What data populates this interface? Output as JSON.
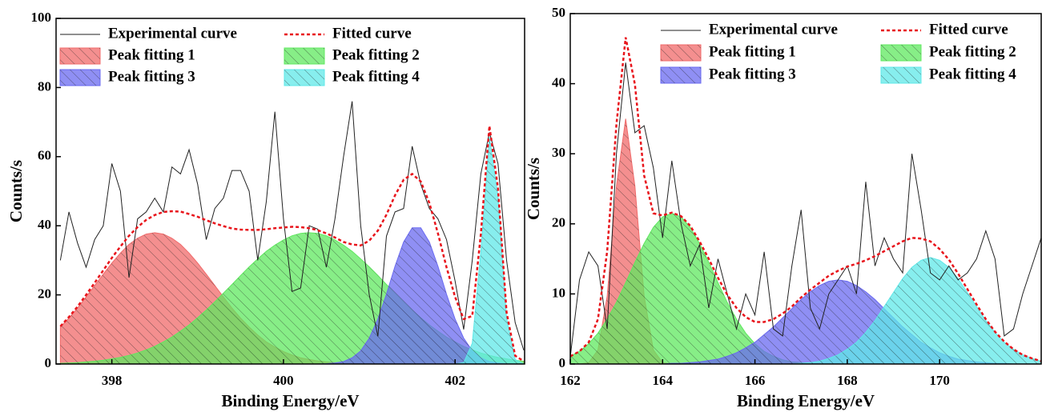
{
  "chart_data": [
    {
      "type": "line",
      "xlabel": "Binding Energy/eV",
      "ylabel": "Counts/s",
      "xlim": [
        397.35,
        402.81
      ],
      "xticks": [
        398,
        400,
        402
      ],
      "ylim": [
        0,
        100
      ],
      "yticks": [
        0,
        20,
        40,
        60,
        80,
        100
      ],
      "x": [
        397.4,
        397.5,
        397.6,
        397.7,
        397.8,
        397.9,
        398.0,
        398.1,
        398.2,
        398.3,
        398.4,
        398.5,
        398.6,
        398.7,
        398.8,
        398.9,
        399.0,
        399.1,
        399.2,
        399.3,
        399.4,
        399.5,
        399.6,
        399.7,
        399.8,
        399.9,
        400.0,
        400.1,
        400.2,
        400.3,
        400.4,
        400.5,
        400.6,
        400.7,
        400.8,
        400.9,
        401.0,
        401.1,
        401.2,
        401.3,
        401.4,
        401.5,
        401.6,
        401.7,
        401.8,
        401.9,
        402.0,
        402.1,
        402.2,
        402.3,
        402.4,
        402.5,
        402.6,
        402.7,
        402.8
      ],
      "series": [
        {
          "name": "Peak fitting 1",
          "style": "hatched-area",
          "color": "#f06a6a",
          "values": [
            10.7,
            13.3,
            16.2,
            19.4,
            22.7,
            26.0,
            29.2,
            32.1,
            34.6,
            36.4,
            37.6,
            38.0,
            37.6,
            36.4,
            34.6,
            32.1,
            29.2,
            26.0,
            22.7,
            19.4,
            16.2,
            13.3,
            10.7,
            8.4,
            6.4,
            4.9,
            3.6,
            2.6,
            1.8,
            1.3,
            0.9,
            0.6,
            0.4,
            0.2,
            0.2,
            0.1,
            0.1,
            0,
            0,
            0,
            0,
            0,
            0,
            0,
            0,
            0,
            0,
            0,
            0,
            0,
            0,
            0,
            0,
            0,
            0
          ]
        },
        {
          "name": "Peak fitting 2",
          "style": "hatched-area",
          "color": "#5fe85f",
          "values": [
            0.2,
            0.3,
            0.4,
            0.6,
            0.8,
            1.1,
            1.5,
            1.9,
            2.5,
            3.2,
            4.1,
            5.1,
            6.4,
            7.8,
            9.5,
            11.3,
            13.4,
            15.6,
            18.0,
            20.5,
            23.0,
            25.6,
            28.1,
            30.4,
            32.6,
            34.4,
            35.9,
            37.1,
            37.8,
            38.0,
            37.8,
            37.1,
            35.9,
            34.4,
            32.6,
            30.4,
            28.1,
            25.6,
            23.0,
            20.5,
            18.0,
            15.6,
            13.4,
            11.3,
            9.5,
            7.8,
            6.4,
            5.1,
            4.1,
            3.2,
            2.5,
            1.9,
            1.5,
            1.1,
            0.8
          ]
        },
        {
          "name": "Peak fitting 3",
          "style": "hatched-area",
          "color": "#6a6af0",
          "values": [
            0,
            0,
            0,
            0,
            0,
            0,
            0,
            0,
            0,
            0,
            0,
            0,
            0,
            0,
            0,
            0,
            0,
            0,
            0,
            0,
            0,
            0,
            0,
            0,
            0,
            0,
            0,
            0,
            0,
            0,
            0,
            0.1,
            0.3,
            0.7,
            1.8,
            3.8,
            7.5,
            13.0,
            20.2,
            28.3,
            35.3,
            39.4,
            39.4,
            35.3,
            28.3,
            20.2,
            13.0,
            7.5,
            3.8,
            1.8,
            0.7,
            0.3,
            0.1,
            0,
            0
          ]
        },
        {
          "name": "Peak fitting 4",
          "style": "hatched-area",
          "color": "#5fe8e8",
          "values": [
            0,
            0,
            0,
            0,
            0,
            0,
            0,
            0,
            0,
            0,
            0,
            0,
            0,
            0,
            0,
            0,
            0,
            0,
            0,
            0,
            0,
            0,
            0,
            0,
            0,
            0,
            0,
            0,
            0,
            0,
            0,
            0,
            0,
            0,
            0,
            0,
            0,
            0,
            0,
            0,
            0,
            0,
            0,
            0,
            0,
            0,
            0,
            0.4,
            6.0,
            32.6,
            65.7,
            48.6,
            13.3,
            1.3,
            0
          ]
        },
        {
          "name": "Experimental curve",
          "style": "line",
          "color": "#222222",
          "values": [
            30,
            44,
            35,
            28,
            36,
            40,
            58,
            50,
            25,
            42,
            44,
            48,
            44,
            57,
            55,
            62,
            52,
            36,
            45,
            48,
            56,
            56,
            50,
            30,
            47,
            73,
            42,
            21,
            22,
            40,
            39,
            28,
            42,
            60,
            76,
            40,
            20,
            8,
            37,
            44,
            45,
            63,
            52,
            45,
            42,
            36,
            24,
            10,
            30,
            55,
            67,
            58,
            30,
            12,
            4
          ]
        },
        {
          "name": "Fitted curve",
          "style": "dashed",
          "color": "#e8141b",
          "values": [
            10.9,
            13.6,
            16.6,
            20.0,
            23.5,
            27.1,
            30.7,
            34.0,
            37.1,
            39.6,
            41.7,
            43.1,
            44.0,
            44.2,
            44.1,
            43.4,
            42.6,
            41.6,
            40.7,
            39.9,
            39.2,
            38.9,
            38.8,
            38.8,
            39.0,
            39.3,
            39.5,
            39.7,
            39.6,
            39.3,
            38.7,
            37.8,
            36.6,
            35.3,
            34.6,
            34.3,
            35.7,
            38.6,
            43.2,
            48.8,
            53.3,
            55.0,
            52.8,
            46.6,
            37.8,
            28.0,
            19.4,
            13.0,
            13.9,
            37.6,
            68.9,
            50.8,
            14.9,
            2.4,
            0.8
          ]
        }
      ],
      "legend_order": [
        4,
        5,
        0,
        1,
        2,
        3
      ]
    },
    {
      "type": "line",
      "xlabel": "Binding Energy/eV",
      "ylabel": "Counts/s",
      "xlim": [
        162,
        172.2
      ],
      "xticks": [
        162,
        164,
        166,
        168,
        170
      ],
      "ylim": [
        0,
        50
      ],
      "yticks": [
        0,
        10,
        20,
        30,
        40,
        50
      ],
      "x": [
        162.0,
        162.2,
        162.4,
        162.6,
        162.8,
        163.0,
        163.2,
        163.4,
        163.6,
        163.8,
        164.0,
        164.2,
        164.4,
        164.6,
        164.8,
        165.0,
        165.2,
        165.4,
        165.6,
        165.8,
        166.0,
        166.2,
        166.4,
        166.6,
        166.8,
        167.0,
        167.2,
        167.4,
        167.6,
        167.8,
        168.0,
        168.2,
        168.4,
        168.6,
        168.8,
        169.0,
        169.2,
        169.4,
        169.6,
        169.8,
        170.0,
        170.2,
        170.4,
        170.6,
        170.8,
        171.0,
        171.2,
        171.4,
        171.6,
        171.8,
        172.0,
        172.2
      ],
      "series": [
        {
          "name": "Peak fitting 1",
          "style": "hatched-area",
          "color": "#f06a6a",
          "values": [
            0,
            0,
            0.2,
            2.0,
            9.7,
            25.4,
            35.0,
            25.4,
            9.7,
            2.0,
            0.2,
            0,
            0,
            0,
            0,
            0,
            0,
            0,
            0,
            0,
            0,
            0,
            0,
            0,
            0,
            0,
            0,
            0,
            0,
            0,
            0,
            0,
            0,
            0,
            0,
            0,
            0,
            0,
            0,
            0,
            0,
            0,
            0,
            0,
            0,
            0,
            0,
            0,
            0,
            0,
            0,
            0
          ]
        },
        {
          "name": "Peak fitting 2",
          "style": "hatched-area",
          "color": "#5fe85f",
          "values": [
            1.1,
            1.8,
            2.9,
            4.4,
            6.4,
            8.8,
            11.6,
            14.5,
            17.2,
            19.5,
            21.0,
            21.5,
            21.0,
            19.5,
            17.2,
            14.5,
            11.6,
            8.8,
            6.4,
            4.4,
            2.9,
            1.8,
            1.1,
            0.6,
            0.3,
            0.2,
            0.1,
            0,
            0,
            0,
            0,
            0,
            0,
            0,
            0,
            0,
            0,
            0,
            0,
            0,
            0,
            0,
            0,
            0,
            0,
            0,
            0,
            0,
            0,
            0,
            0,
            0
          ]
        },
        {
          "name": "Peak fitting 3",
          "style": "hatched-area",
          "color": "#6a6af0",
          "values": [
            0,
            0,
            0,
            0,
            0,
            0,
            0,
            0,
            0,
            0,
            0,
            0.1,
            0.1,
            0.2,
            0.3,
            0.5,
            0.7,
            1.1,
            1.6,
            2.3,
            3.1,
            4.2,
            5.3,
            6.6,
            7.9,
            9.2,
            10.3,
            11.2,
            11.8,
            12.0,
            11.8,
            11.2,
            10.3,
            9.2,
            7.9,
            6.6,
            5.3,
            4.2,
            3.1,
            2.3,
            1.6,
            1.1,
            0.7,
            0.5,
            0.3,
            0.2,
            0.1,
            0.1,
            0,
            0,
            0,
            0
          ]
        },
        {
          "name": "Peak fitting 4",
          "style": "hatched-area",
          "color": "#5fe8e8",
          "values": [
            0,
            0,
            0,
            0,
            0,
            0,
            0,
            0,
            0,
            0,
            0,
            0,
            0,
            0,
            0,
            0,
            0,
            0,
            0,
            0,
            0,
            0,
            0,
            0,
            0,
            0.1,
            0.2,
            0.4,
            0.8,
            1.3,
            2.1,
            3.1,
            4.5,
            6.2,
            8.2,
            10.2,
            12.2,
            13.8,
            14.8,
            15.2,
            14.8,
            13.8,
            12.2,
            10.2,
            8.2,
            6.2,
            4.5,
            3.1,
            2.1,
            1.3,
            0.8,
            0.4
          ]
        },
        {
          "name": "Experimental curve",
          "style": "line",
          "color": "#222222",
          "values": [
            1,
            12,
            16,
            14,
            5,
            30,
            43,
            33,
            34,
            28,
            18,
            29,
            20,
            14,
            17,
            8,
            15,
            10,
            5,
            10,
            7,
            16,
            5,
            4,
            14,
            22,
            8,
            5,
            10,
            12,
            14,
            10,
            26,
            14,
            18,
            15,
            13,
            30,
            22,
            13,
            12,
            14,
            12,
            13,
            15,
            19,
            15,
            4,
            5,
            10,
            14,
            18
          ]
        },
        {
          "name": "Fitted curve",
          "style": "dashed",
          "color": "#e8141b",
          "values": [
            1.1,
            1.8,
            3.1,
            6.4,
            16.1,
            34.2,
            46.6,
            39.9,
            26.9,
            21.5,
            21.2,
            21.6,
            21.1,
            19.7,
            17.5,
            15.0,
            12.3,
            9.9,
            8.0,
            6.7,
            6.0,
            6.0,
            6.4,
            7.2,
            8.2,
            9.5,
            10.6,
            11.6,
            12.6,
            13.3,
            13.9,
            14.3,
            14.8,
            15.4,
            16.1,
            16.8,
            17.5,
            18.0,
            17.9,
            17.5,
            16.4,
            14.9,
            12.9,
            10.7,
            8.5,
            6.4,
            4.6,
            3.2,
            2.1,
            1.3,
            0.8,
            0.4
          ]
        }
      ],
      "legend_order": [
        4,
        5,
        0,
        1,
        2,
        3
      ]
    }
  ]
}
